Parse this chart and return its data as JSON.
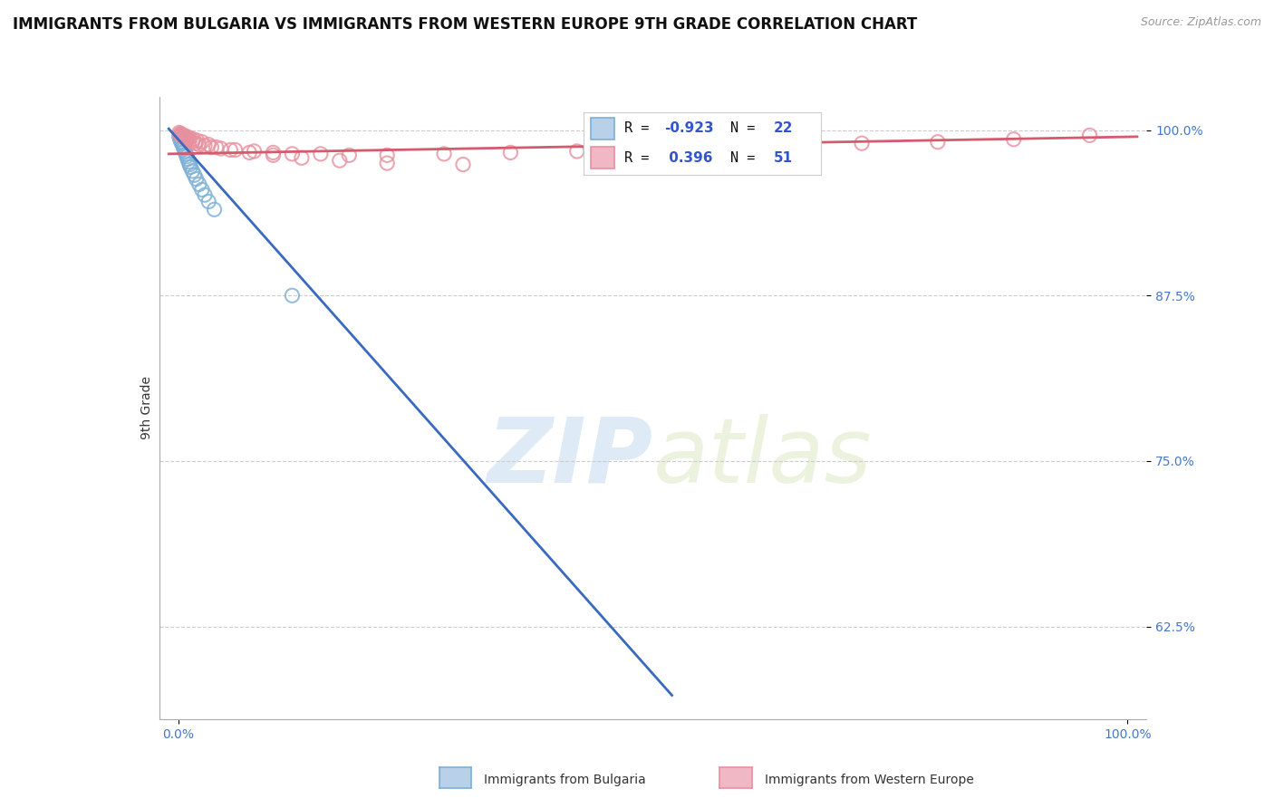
{
  "title": "IMMIGRANTS FROM BULGARIA VS IMMIGRANTS FROM WESTERN EUROPE 9TH GRADE CORRELATION CHART",
  "source_text": "Source: ZipAtlas.com",
  "ylabel": "9th Grade",
  "watermark_zip": "ZIP",
  "watermark_atlas": "atlas",
  "series": [
    {
      "label": "Immigrants from Bulgaria",
      "edge_color": "#7bafd4",
      "R": -0.923,
      "N": 22,
      "trend_color": "#3a6abf",
      "points_x": [
        0.001,
        0.002,
        0.003,
        0.004,
        0.005,
        0.006,
        0.007,
        0.008,
        0.009,
        0.01,
        0.011,
        0.012,
        0.013,
        0.015,
        0.017,
        0.019,
        0.022,
        0.025,
        0.028,
        0.032,
        0.038,
        0.12
      ],
      "points_y": [
        0.995,
        0.993,
        0.991,
        0.99,
        0.988,
        0.986,
        0.984,
        0.982,
        0.98,
        0.978,
        0.976,
        0.974,
        0.972,
        0.969,
        0.966,
        0.963,
        0.959,
        0.955,
        0.951,
        0.946,
        0.94,
        0.875
      ],
      "trend_x": [
        -0.01,
        0.52
      ],
      "trend_y": [
        1.001,
        0.573
      ]
    },
    {
      "label": "Immigrants from Western Europe",
      "edge_color": "#e8909e",
      "R": 0.396,
      "N": 51,
      "trend_color": "#d45a6e",
      "points_x": [
        0.001,
        0.002,
        0.003,
        0.004,
        0.005,
        0.006,
        0.007,
        0.008,
        0.009,
        0.01,
        0.012,
        0.015,
        0.018,
        0.022,
        0.028,
        0.035,
        0.045,
        0.06,
        0.08,
        0.1,
        0.12,
        0.15,
        0.18,
        0.22,
        0.28,
        0.35,
        0.42,
        0.5,
        0.58,
        0.65,
        0.72,
        0.8,
        0.88,
        0.96,
        0.003,
        0.006,
        0.009,
        0.012,
        0.016,
        0.02,
        0.025,
        0.032,
        0.04,
        0.055,
        0.075,
        0.1,
        0.13,
        0.17,
        0.22,
        0.3,
        0.6
      ],
      "points_y": [
        0.998,
        0.997,
        0.996,
        0.996,
        0.995,
        0.995,
        0.994,
        0.994,
        0.993,
        0.993,
        0.992,
        0.991,
        0.99,
        0.989,
        0.988,
        0.987,
        0.986,
        0.985,
        0.984,
        0.983,
        0.982,
        0.982,
        0.981,
        0.981,
        0.982,
        0.983,
        0.984,
        0.986,
        0.987,
        0.988,
        0.99,
        0.991,
        0.993,
        0.996,
        0.997,
        0.996,
        0.995,
        0.994,
        0.993,
        0.992,
        0.991,
        0.989,
        0.987,
        0.985,
        0.983,
        0.981,
        0.979,
        0.977,
        0.975,
        0.974,
        0.989
      ],
      "trend_x": [
        -0.01,
        1.01
      ],
      "trend_y": [
        0.982,
        0.995
      ]
    }
  ],
  "xlim": [
    -0.02,
    1.02
  ],
  "ylim": [
    0.555,
    1.025
  ],
  "yticks": [
    0.625,
    0.75,
    0.875,
    1.0
  ],
  "ytick_labels": [
    "62.5%",
    "75.0%",
    "87.5%",
    "100.0%"
  ],
  "xticks": [
    0.0,
    1.0
  ],
  "xtick_labels": [
    "0.0%",
    "100.0%"
  ],
  "background_color": "#ffffff",
  "grid_color": "#cccccc",
  "title_fontsize": 12,
  "tick_fontsize": 10,
  "tick_color": "#4477cc"
}
